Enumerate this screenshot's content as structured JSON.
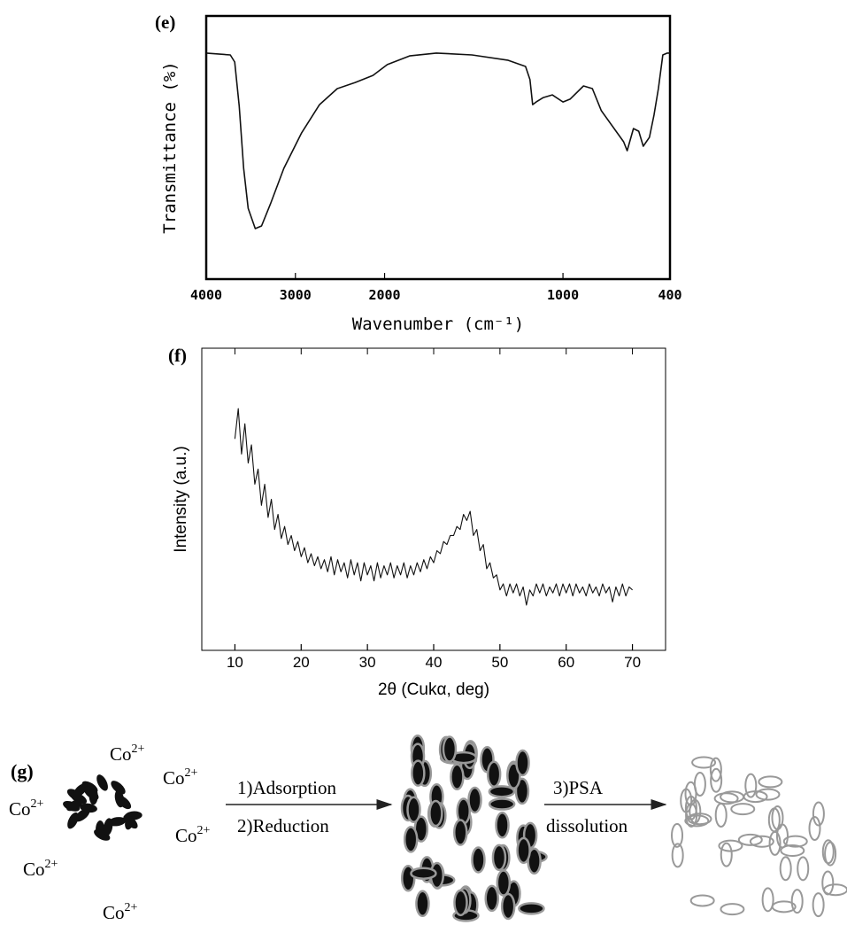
{
  "chart_data": [
    {
      "type": "line",
      "panel_label": "(e)",
      "x_label": "Wavenumber (cm⁻¹)",
      "y_label": "Transmittance (%)",
      "xlim": [
        4000,
        400
      ],
      "xticks": [
        4000,
        3000,
        2000,
        1000,
        400
      ],
      "x_scale_break": 2000,
      "ylim": [
        0,
        100
      ],
      "color": "#111111",
      "x": [
        4000,
        3730,
        3680,
        3630,
        3580,
        3530,
        3450,
        3380,
        3280,
        3130,
        2930,
        2730,
        2530,
        2330,
        2130,
        1985,
        1860,
        1710,
        1510,
        1310,
        1210,
        1185,
        1170,
        1150,
        1110,
        1060,
        1000,
        960,
        885,
        835,
        785,
        660,
        640,
        605,
        575,
        550,
        515,
        490,
        465,
        440,
        415,
        400
      ],
      "values": [
        85.9,
        85.2,
        82.5,
        65.7,
        42.1,
        26.9,
        19.2,
        20.2,
        28.6,
        42.1,
        55.6,
        66.3,
        72.4,
        74.7,
        77.4,
        81.5,
        84.8,
        85.9,
        85.2,
        83.2,
        80.8,
        75.8,
        66.3,
        67.3,
        69.0,
        70.0,
        67.3,
        68.4,
        73.4,
        72.4,
        64.0,
        52.2,
        48.8,
        57.2,
        56.2,
        50.5,
        53.9,
        62.3,
        72.4,
        85.2,
        85.9,
        85.9
      ]
    },
    {
      "type": "line",
      "panel_label": "(f)",
      "x_label": "2θ (Cukα, deg)",
      "y_label": "Intensity (a.u.)",
      "xlim": [
        5,
        75
      ],
      "xticks": [
        10,
        20,
        30,
        40,
        50,
        60,
        70
      ],
      "ylim": [
        0,
        100
      ],
      "color": "#111111",
      "x": [
        10,
        10.5,
        11,
        11.5,
        12,
        12.5,
        13,
        13.5,
        14,
        14.5,
        15,
        15.5,
        16,
        16.5,
        17,
        17.5,
        18,
        18.5,
        19,
        19.5,
        20,
        20.5,
        21,
        21.5,
        22,
        22.5,
        23,
        23.5,
        24,
        24.5,
        25,
        25.5,
        26,
        26.5,
        27,
        27.5,
        28,
        28.5,
        29,
        29.5,
        30,
        30.5,
        31,
        31.5,
        32,
        32.5,
        33,
        33.5,
        34,
        34.5,
        35,
        35.5,
        36,
        36.5,
        37,
        37.5,
        38,
        38.5,
        39,
        39.5,
        40,
        40.5,
        41,
        41.5,
        42,
        42.5,
        43,
        43.5,
        44,
        44.5,
        45,
        45.5,
        46,
        46.5,
        47,
        47.5,
        48,
        48.5,
        49,
        49.5,
        50,
        50.5,
        51,
        51.5,
        52,
        52.5,
        53,
        53.5,
        54,
        54.5,
        55,
        55.5,
        56,
        56.5,
        57,
        57.5,
        58,
        58.5,
        59,
        59.5,
        60,
        60.5,
        61,
        61.5,
        62,
        62.5,
        63,
        63.5,
        64,
        64.5,
        65,
        65.5,
        66,
        66.5,
        67,
        67.5,
        68,
        68.5,
        69,
        69.5,
        70
      ],
      "values": [
        70,
        80,
        65,
        75,
        62,
        68,
        55,
        60,
        48,
        55,
        44,
        50,
        40,
        45,
        37,
        41,
        35,
        38,
        33,
        36,
        31,
        34,
        29,
        32,
        28,
        31,
        27,
        30,
        26,
        31,
        25,
        30,
        26,
        29,
        24,
        30,
        25,
        29,
        23,
        29,
        25,
        28,
        23,
        29,
        24,
        28,
        25,
        29,
        24,
        28,
        25,
        29,
        24,
        28,
        25,
        29,
        26,
        30,
        27,
        31,
        29,
        33,
        32,
        36,
        35,
        38,
        38,
        41,
        40,
        45,
        43,
        46,
        38,
        40,
        33,
        35,
        27,
        29,
        24,
        25,
        20,
        22,
        18,
        22,
        19,
        22,
        18,
        21,
        15,
        20,
        18,
        22,
        19,
        22,
        18,
        21,
        19,
        22,
        18,
        22,
        19,
        22,
        18,
        22,
        19,
        21,
        18,
        22,
        19,
        21,
        18,
        22,
        19,
        21,
        16,
        21,
        18,
        22,
        18,
        21,
        20
      ]
    }
  ],
  "diagram": {
    "panel_label": "(g)",
    "ions": [
      {
        "base": "Co",
        "charge": "2+"
      },
      {
        "base": "Co",
        "charge": "2+"
      },
      {
        "base": "Co",
        "charge": "2+"
      },
      {
        "base": "Co",
        "charge": "2+"
      },
      {
        "base": "Co",
        "charge": "2+"
      },
      {
        "base": "Co",
        "charge": "2+"
      }
    ],
    "step_1": "1)Adsorption",
    "step_2": "2)Reduction",
    "step_3": "3)PSA",
    "step_3b": "dissolution"
  }
}
